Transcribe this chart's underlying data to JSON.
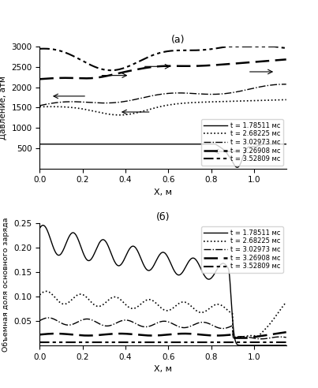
{
  "title_a": "(a)",
  "title_b": "(б)",
  "xlabel": "X, м",
  "ylabel_a": "Давление, атм",
  "ylabel_b": "Объемная доля основного заряда",
  "legend_labels": [
    "t = 1.78511 мс",
    "t = 2.68225 мс",
    "t = 3.02973 мс",
    "t = 3.26908 мс",
    "t = 3.52809 мс"
  ],
  "xlim": [
    0,
    1.15
  ],
  "ylim_a": [
    0,
    3000
  ],
  "ylim_b": [
    0,
    0.25
  ],
  "xticks": [
    0,
    0.2,
    0.4,
    0.6,
    0.8,
    1.0
  ],
  "yticks_a": [
    500,
    1000,
    1500,
    2000,
    2500,
    3000
  ],
  "yticks_b": [
    0.05,
    0.1,
    0.15,
    0.2,
    0.25
  ]
}
